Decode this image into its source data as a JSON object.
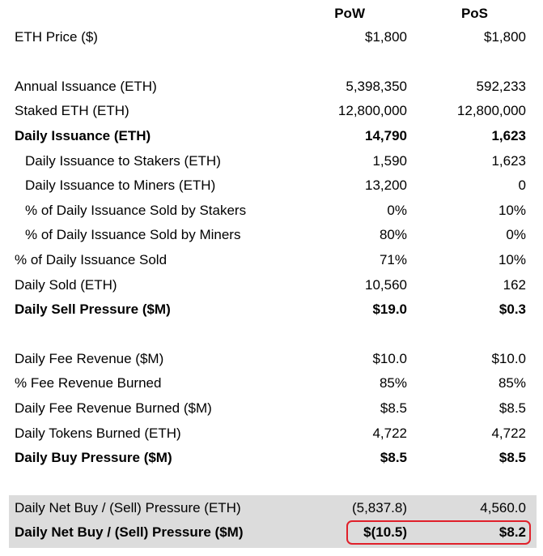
{
  "columns": {
    "pow": "PoW",
    "pos": "PoS"
  },
  "rows": [
    {
      "label": "ETH Price ($)",
      "pow": "$1,800",
      "pos": "$1,800",
      "bold": false,
      "indent": false
    },
    {
      "label": "Annual Issuance (ETH)",
      "pow": "5,398,350",
      "pos": "592,233",
      "bold": false,
      "indent": false
    },
    {
      "label": "Staked ETH (ETH)",
      "pow": "12,800,000",
      "pos": "12,800,000",
      "bold": false,
      "indent": false
    },
    {
      "label": "Daily Issuance (ETH)",
      "pow": "14,790",
      "pos": "1,623",
      "bold": true,
      "indent": false
    },
    {
      "label": "Daily Issuance to Stakers (ETH)",
      "pow": "1,590",
      "pos": "1,623",
      "bold": false,
      "indent": true
    },
    {
      "label": "Daily Issuance to Miners (ETH)",
      "pow": "13,200",
      "pos": "0",
      "bold": false,
      "indent": true
    },
    {
      "label": "% of Daily Issuance Sold by Stakers",
      "pow": "0%",
      "pos": "10%",
      "bold": false,
      "indent": true
    },
    {
      "label": "% of Daily Issuance Sold by Miners",
      "pow": "80%",
      "pos": "0%",
      "bold": false,
      "indent": true
    },
    {
      "label": "% of Daily Issuance Sold",
      "pow": "71%",
      "pos": "10%",
      "bold": false,
      "indent": false
    },
    {
      "label": "Daily Sold (ETH)",
      "pow": "10,560",
      "pos": "162",
      "bold": false,
      "indent": false
    },
    {
      "label": "Daily Sell Pressure ($M)",
      "pow": "$19.0",
      "pos": "$0.3",
      "bold": true,
      "indent": false
    },
    {
      "label": "Daily Fee Revenue ($M)",
      "pow": "$10.0",
      "pos": "$10.0",
      "bold": false,
      "indent": false
    },
    {
      "label": "% Fee Revenue Burned",
      "pow": "85%",
      "pos": "85%",
      "bold": false,
      "indent": false
    },
    {
      "label": "Daily Fee Revenue Burned ($M)",
      "pow": "$8.5",
      "pos": "$8.5",
      "bold": false,
      "indent": false
    },
    {
      "label": "Daily Tokens Burned (ETH)",
      "pow": "4,722",
      "pos": "4,722",
      "bold": false,
      "indent": false
    },
    {
      "label": "Daily Buy Pressure ($M)",
      "pow": "$8.5",
      "pos": "$8.5",
      "bold": true,
      "indent": false
    },
    {
      "label": "Daily Net Buy / (Sell) Pressure (ETH)",
      "pow": "(5,837.8)",
      "pos": "4,560.0",
      "bold": false,
      "indent": false
    },
    {
      "label": "Daily Net Buy / (Sell) Pressure ($M)",
      "pow": "$(10.5)",
      "pos": "$8.2",
      "bold": true,
      "indent": false
    }
  ],
  "colors": {
    "summary_shading": "#dcdcdc",
    "highlight_border": "#e0202a"
  }
}
